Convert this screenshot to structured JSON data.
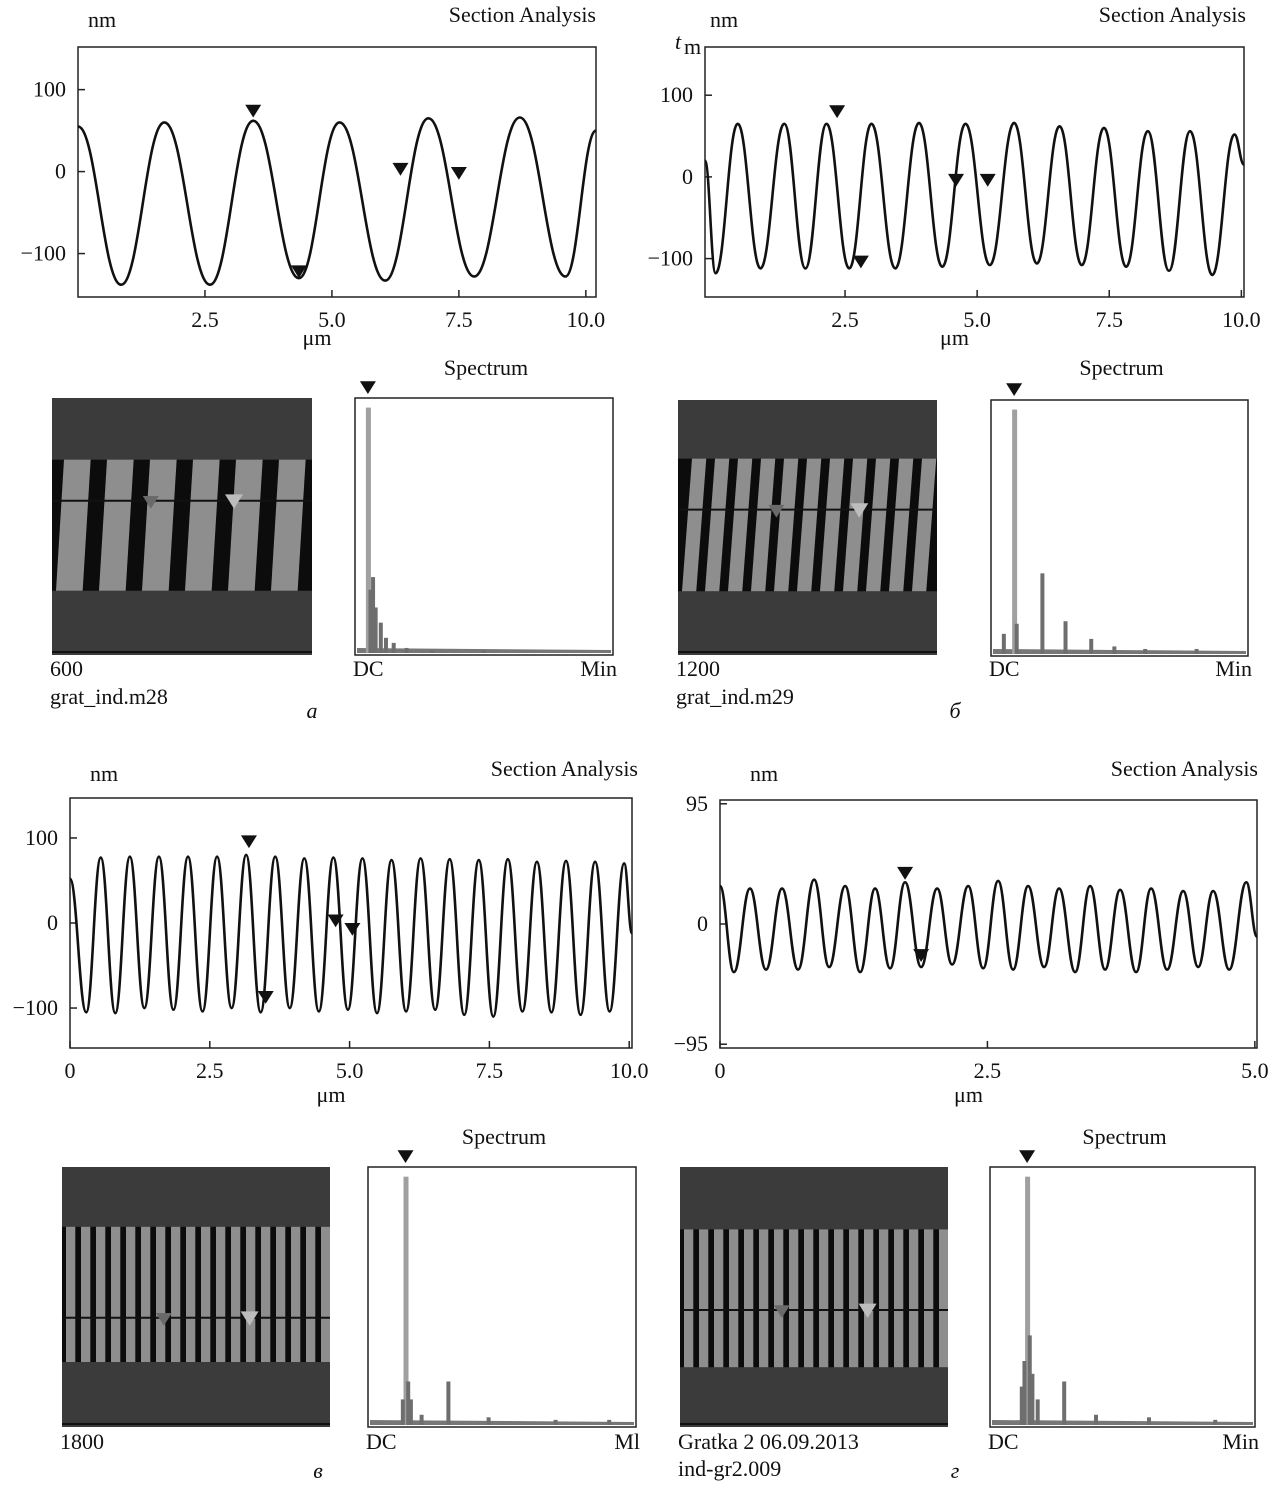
{
  "chart_data": [
    {
      "type": "line",
      "title": "Section Analysis",
      "y_label": "nm",
      "x_label": "μm",
      "xlim": [
        0,
        10.2
      ],
      "ylim": [
        -153,
        152
      ],
      "xticks": [
        2.5,
        {
          "value": 5,
          "label": "5.0"
        },
        7.5,
        {
          "value": 10,
          "label": "10.0"
        }
      ],
      "yticks": [
        100,
        0,
        {
          "value": -100,
          "label": "−100"
        }
      ],
      "x": [
        0,
        0.85,
        1.7,
        2.6,
        3.45,
        4.35,
        5.15,
        6.05,
        6.9,
        7.8,
        8.7,
        9.6,
        10.2
      ],
      "values": [
        55,
        -138,
        60,
        -138,
        62,
        -130,
        60,
        -133,
        65,
        -128,
        66,
        -128,
        50
      ],
      "cursor_x": [
        3.45,
        4.35,
        6.35,
        7.5
      ],
      "cursor_y": [
        66,
        -130,
        -5,
        -10
      ],
      "image_labels": [
        "600",
        "grat_ind.m28"
      ],
      "panel_letter": "а",
      "spectrum": {
        "title": "Spectrum",
        "left_label": "DC",
        "right_label": "Min",
        "peaks_x": [
          5,
          6,
          7,
          8,
          10,
          12,
          15,
          20,
          30,
          50
        ],
        "peaks_h": [
          97,
          25,
          30,
          18,
          12,
          6,
          4,
          2,
          1,
          1
        ]
      }
    },
    {
      "type": "line",
      "title": "Section Analysis",
      "y_label": "nm",
      "x_label": "μm",
      "corner_label": "t",
      "corner_label_sub": "m",
      "xlim": [
        -0.15,
        10.05
      ],
      "ylim": [
        -147,
        159
      ],
      "xticks": [
        2.5,
        {
          "value": 5,
          "label": "5.0"
        },
        7.5,
        {
          "value": 10,
          "label": "10.0"
        }
      ],
      "yticks": [
        100,
        0,
        {
          "value": -100,
          "label": "−100"
        }
      ],
      "x": [
        -0.15,
        0.05,
        0.47,
        0.9,
        1.35,
        1.75,
        2.15,
        2.58,
        3.0,
        3.45,
        3.9,
        4.34,
        4.78,
        5.24,
        5.7,
        6.13,
        6.56,
        6.98,
        7.4,
        7.82,
        8.23,
        8.63,
        9.03,
        9.45,
        9.87,
        10.05
      ],
      "values": [
        20,
        -118,
        65,
        -112,
        65,
        -112,
        65,
        -112,
        65,
        -112,
        66,
        -110,
        65,
        -108,
        66,
        -106,
        62,
        -108,
        60,
        -110,
        56,
        -115,
        56,
        -120,
        52,
        15
      ],
      "cursor_x": [
        2.35,
        2.8,
        4.6,
        5.2
      ],
      "cursor_y": [
        72,
        -112,
        -12,
        -12
      ],
      "image_labels": [
        "1200",
        "grat_ind.m29"
      ],
      "panel_letter": "б",
      "spectrum": {
        "title": "Spectrum",
        "left_label": "DC",
        "right_label": "Min",
        "peaks_x": [
          9,
          10,
          5,
          20,
          29,
          39,
          48,
          60,
          80
        ],
        "peaks_h": [
          97,
          12,
          8,
          32,
          13,
          6,
          3,
          2,
          2
        ]
      }
    },
    {
      "type": "line",
      "title": "Section Analysis",
      "y_label": "nm",
      "x_label": "μm",
      "xlim": [
        0,
        10.05
      ],
      "ylim": [
        -147,
        147
      ],
      "xticks": [
        0,
        2.5,
        {
          "value": 5,
          "label": "5.0"
        },
        7.5,
        {
          "value": 10,
          "label": "10.0"
        }
      ],
      "yticks": [
        100,
        0,
        {
          "value": -100,
          "label": "−100"
        }
      ],
      "x": [
        0,
        0.29,
        0.55,
        0.81,
        1.07,
        1.33,
        1.59,
        1.85,
        2.11,
        2.37,
        2.63,
        2.89,
        3.15,
        3.41,
        3.67,
        3.93,
        4.19,
        4.45,
        4.71,
        4.97,
        5.23,
        5.49,
        5.75,
        6.01,
        6.27,
        6.53,
        6.79,
        7.05,
        7.31,
        7.57,
        7.83,
        8.09,
        8.35,
        8.61,
        8.87,
        9.13,
        9.39,
        9.65,
        9.91,
        10.05
      ],
      "values": [
        52,
        -105,
        77,
        -106,
        78,
        -100,
        78,
        -102,
        78,
        -104,
        78,
        -100,
        80,
        -105,
        78,
        -100,
        76,
        -104,
        77,
        -102,
        76,
        -106,
        74,
        -104,
        76,
        -102,
        75,
        -108,
        74,
        -110,
        75,
        -104,
        72,
        -105,
        73,
        -108,
        72,
        -104,
        70,
        -12
      ],
      "cursor_x": [
        3.2,
        3.5,
        4.75,
        5.05
      ],
      "cursor_y": [
        88,
        -95,
        -5,
        -15
      ],
      "image_labels": [
        "1800"
      ],
      "panel_letter": "в",
      "spectrum": {
        "title": "Spectrum",
        "left_label": "DC",
        "right_label": "Ml",
        "peaks_x": [
          14,
          15,
          13,
          16,
          30,
          20,
          45,
          70,
          90
        ],
        "peaks_h": [
          97,
          17,
          10,
          10,
          17,
          4,
          3,
          2,
          2
        ]
      }
    },
    {
      "type": "line",
      "title": "Section Analysis",
      "y_label": "nm",
      "x_label": "μm",
      "xlim": [
        0,
        5.02
      ],
      "ylim": [
        -98,
        98
      ],
      "xticks": [
        0,
        2.5,
        {
          "value": 5,
          "label": "5.0"
        }
      ],
      "yticks": [
        95,
        0,
        {
          "value": -95,
          "label": "−95"
        }
      ],
      "x": [
        0,
        0.13,
        0.28,
        0.43,
        0.58,
        0.73,
        0.88,
        1.02,
        1.17,
        1.31,
        1.45,
        1.59,
        1.73,
        1.88,
        2.03,
        2.17,
        2.32,
        2.46,
        2.6,
        2.74,
        2.88,
        3.03,
        3.17,
        3.32,
        3.46,
        3.6,
        3.74,
        3.89,
        4.03,
        4.18,
        4.33,
        4.47,
        4.61,
        4.76,
        4.92,
        5.02
      ],
      "values": [
        30,
        -38,
        28,
        -36,
        28,
        -36,
        35,
        -34,
        30,
        -38,
        28,
        -35,
        33,
        -34,
        28,
        -32,
        30,
        -35,
        34,
        -36,
        30,
        -34,
        28,
        -38,
        30,
        -36,
        27,
        -38,
        28,
        -36,
        26,
        -34,
        26,
        -36,
        33,
        -10
      ],
      "cursor_x": [
        1.73,
        1.88
      ],
      "cursor_y": [
        35,
        -30
      ],
      "image_labels": [
        "Gratka 2 06.09.2013",
        "ind-gr2.009"
      ],
      "panel_letter": "г",
      "spectrum": {
        "title": "Spectrum",
        "left_label": "DC",
        "right_label": "Min",
        "peaks_x": [
          14,
          15,
          13,
          12,
          16,
          18,
          28,
          40,
          60,
          85
        ],
        "peaks_h": [
          97,
          35,
          25,
          15,
          20,
          10,
          17,
          4,
          3,
          2
        ]
      }
    }
  ]
}
